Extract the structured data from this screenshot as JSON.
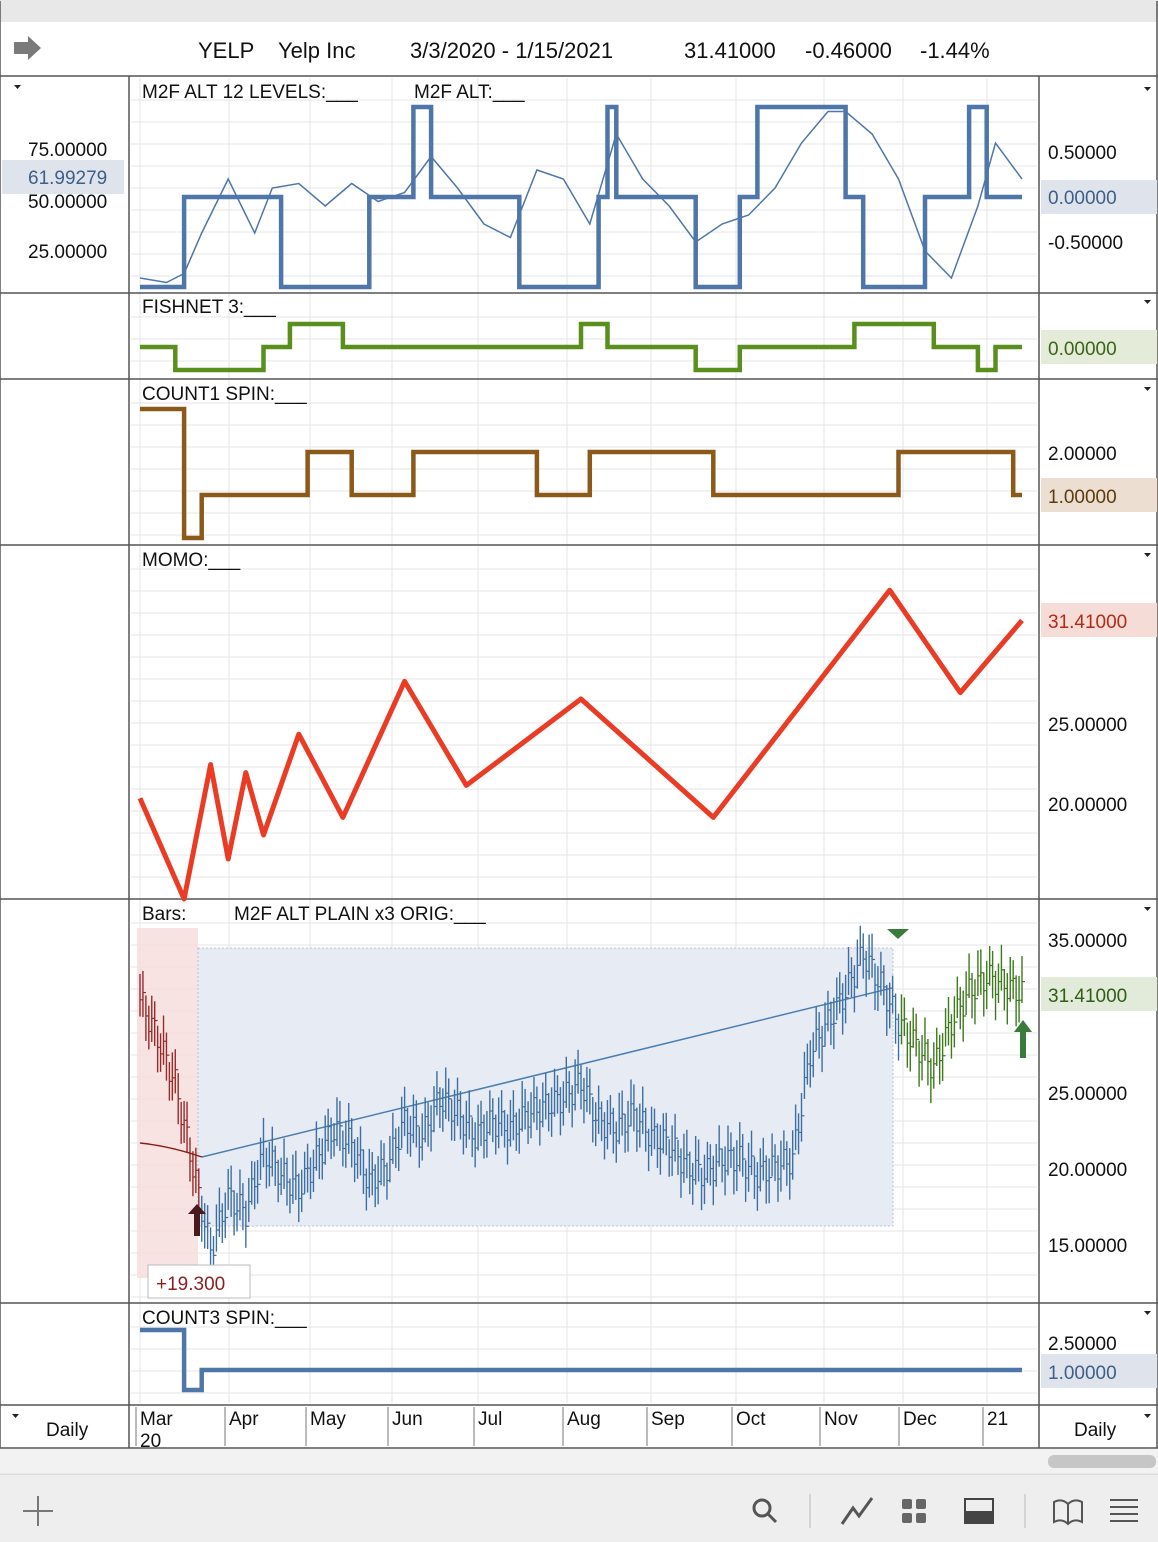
{
  "header": {
    "symbol": "YELP",
    "company": "Yelp Inc",
    "date_range": "3/3/2020 - 1/15/2021",
    "last": "31.41000",
    "change": "-0.46000",
    "change_pct": "-1.44%"
  },
  "timeframe_left": "Daily",
  "timeframe_right": "Daily",
  "x_axis": {
    "months": [
      "Mar",
      "Apr",
      "May",
      "Jun",
      "Jul",
      "Aug",
      "Sep",
      "Oct",
      "Nov",
      "Dec",
      "21"
    ],
    "year_start": "20",
    "year_end": "21"
  },
  "toolbar": {
    "add": "plus-icon",
    "search": "search-icon",
    "draw": "draw-line-icon",
    "layout": "grid-icon",
    "panel": "panel-icon",
    "book": "book-icon",
    "menu": "menu-icon"
  },
  "colors": {
    "m2f": "#4f76a8",
    "fishnet": "#5a8f1e",
    "count1": "#8b5a1a",
    "momo": "#ea3b24",
    "bars_blue": "#3e6fa3",
    "bars_red": "#9a2a2a",
    "bars_green": "#3d7a1d",
    "count3": "#4f76a8"
  },
  "chart_data": [
    {
      "type": "line",
      "label": "M2F ALT 12 LEVELS:___",
      "label2": "M2F ALT:___",
      "left_ticks": [
        "75.00000",
        "50.00000",
        "25.00000"
      ],
      "left_badge": "61.99279",
      "right_ticks": [
        "0.50000",
        "-0.50000"
      ],
      "right_badge": "0.00000",
      "series": [
        {
          "role": "levels",
          "x": [
            0,
            5,
            5,
            16,
            16,
            26,
            26,
            27,
            27,
            31,
            31,
            33,
            33,
            43,
            43,
            52,
            52,
            53,
            53,
            54,
            54,
            63,
            63,
            68,
            68,
            70,
            70,
            80,
            80,
            82,
            82,
            89,
            89,
            94,
            94,
            96,
            96,
            100
          ],
          "values": [
            -1,
            -1,
            0,
            0,
            -1,
            -1,
            0,
            0,
            0,
            0,
            1,
            1,
            0,
            0,
            -1,
            -1,
            0,
            0,
            1,
            1,
            0,
            0,
            -1,
            -1,
            0,
            0,
            1,
            1,
            0,
            0,
            -1,
            -1,
            0,
            0,
            1,
            1,
            0,
            0
          ]
        },
        {
          "role": "m2f",
          "x": [
            0,
            3,
            5,
            7,
            10,
            13,
            15,
            18,
            21,
            24,
            27,
            30,
            33,
            36,
            39,
            42,
            45,
            48,
            51,
            54,
            57,
            60,
            63,
            66,
            69,
            72,
            75,
            78,
            80,
            83,
            86,
            89,
            92,
            95,
            97,
            100
          ],
          "values": [
            -0.9,
            -0.95,
            -0.85,
            -0.4,
            0.2,
            -0.4,
            0.1,
            0.15,
            -0.1,
            0.15,
            -0.05,
            0.05,
            0.45,
            0.1,
            -0.3,
            -0.45,
            0.3,
            0.2,
            -0.3,
            0.7,
            0.2,
            -0.1,
            -0.5,
            -0.3,
            -0.2,
            0.1,
            0.6,
            0.95,
            0.95,
            0.7,
            0.2,
            -0.6,
            -0.9,
            -0.1,
            0.6,
            0.2
          ]
        }
      ]
    },
    {
      "type": "line",
      "label": "FISHNET 3:___",
      "right_badge": "0.00000",
      "x": [
        0,
        4,
        4,
        14,
        14,
        17,
        17,
        23,
        23,
        50,
        50,
        53,
        53,
        63,
        63,
        68,
        68,
        81,
        81,
        90,
        90,
        95,
        95,
        97,
        97,
        100
      ],
      "values": [
        0,
        0,
        -1,
        -1,
        0,
        0,
        1,
        1,
        0,
        0,
        1,
        1,
        0,
        0,
        -1,
        -1,
        0,
        0,
        1,
        1,
        0,
        0,
        -1,
        -1,
        0,
        0
      ]
    },
    {
      "type": "line",
      "label": "COUNT1 SPIN:___",
      "right_ticks": [
        "2.00000"
      ],
      "right_badge": "1.00000",
      "x": [
        0,
        5,
        5,
        7,
        7,
        19,
        19,
        24,
        24,
        31,
        31,
        45,
        45,
        51,
        51,
        65,
        65,
        86,
        86,
        99,
        99,
        100
      ],
      "values": [
        3,
        3,
        0,
        0,
        1,
        1,
        2,
        2,
        1,
        1,
        2,
        2,
        1,
        1,
        2,
        2,
        1,
        1,
        2,
        2,
        1,
        1
      ]
    },
    {
      "type": "line",
      "label": "MOMO:___",
      "right_ticks": [
        "25.00000",
        "20.00000"
      ],
      "right_badge": "31.41000",
      "x": [
        0,
        5,
        8,
        10,
        12,
        14,
        18,
        23,
        30,
        37,
        50,
        65,
        85,
        93,
        100
      ],
      "values": [
        20.3,
        14.0,
        22.4,
        16.5,
        21.9,
        18.0,
        24.3,
        19.1,
        27.6,
        21.1,
        26.5,
        19.1,
        33.3,
        26.9,
        31.41
      ]
    },
    {
      "type": "bar",
      "label": "Bars:",
      "label2": "M2F ALT PLAIN x3 ORIG:___",
      "right_ticks": [
        "35.00000",
        "25.00000",
        "20.00000",
        "15.00000"
      ],
      "right_badge": "31.41000",
      "annotation": "+19.300",
      "x": [
        0,
        2,
        4,
        6,
        8,
        10,
        12,
        14,
        16,
        18,
        20,
        22,
        24,
        26,
        28,
        30,
        32,
        34,
        36,
        38,
        40,
        42,
        44,
        46,
        48,
        50,
        52,
        54,
        56,
        58,
        60,
        62,
        64,
        66,
        68,
        70,
        72,
        74,
        76,
        78,
        80,
        82,
        84,
        86,
        88,
        90,
        92,
        94,
        96,
        98,
        100
      ],
      "series": [
        {
          "name": "Bars",
          "values": [
            31.0,
            28.5,
            25.5,
            20.0,
            14.5,
            18.0,
            17.0,
            21.0,
            19.5,
            18.5,
            20.5,
            22.5,
            21.5,
            19.0,
            20.0,
            23.0,
            22.0,
            24.5,
            23.5,
            22.0,
            23.0,
            22.5,
            23.5,
            24.0,
            24.5,
            25.5,
            23.0,
            22.5,
            23.5,
            22.0,
            21.5,
            20.0,
            19.5,
            20.5,
            20.5,
            19.5,
            20.0,
            20.5,
            27.5,
            29.5,
            31.5,
            34.0,
            32.0,
            29.5,
            28.0,
            26.5,
            29.5,
            31.5,
            32.5,
            32.0,
            31.41
          ]
        }
      ]
    },
    {
      "type": "line",
      "label": "COUNT3 SPIN:___",
      "right_ticks": [
        "2.50000"
      ],
      "right_badge": "1.00000",
      "x": [
        0,
        5,
        5,
        7,
        7,
        100
      ],
      "values": [
        3,
        3,
        0,
        0,
        1,
        1
      ]
    }
  ]
}
